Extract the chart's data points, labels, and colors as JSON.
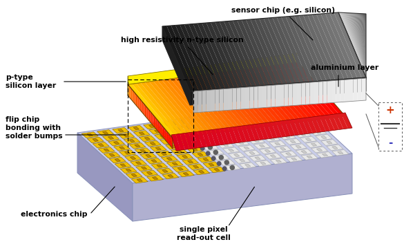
{
  "bg_color": "#ffffff",
  "labels": {
    "sensor_chip": "sensor chip (e.g. silicon)",
    "high_resistivity": "high resistivity n-type silicon",
    "p_type": "p-type\nsilicon layer",
    "flip_chip": "flip chip\nbonding with\nsolder bumps",
    "aluminium": "aluminium layer",
    "electronics": "electronics chip",
    "single_pixel": "single pixel\nread-out cell",
    "plus": "+",
    "minus": "-"
  },
  "figsize": [
    5.98,
    3.63
  ],
  "dpi": 100
}
